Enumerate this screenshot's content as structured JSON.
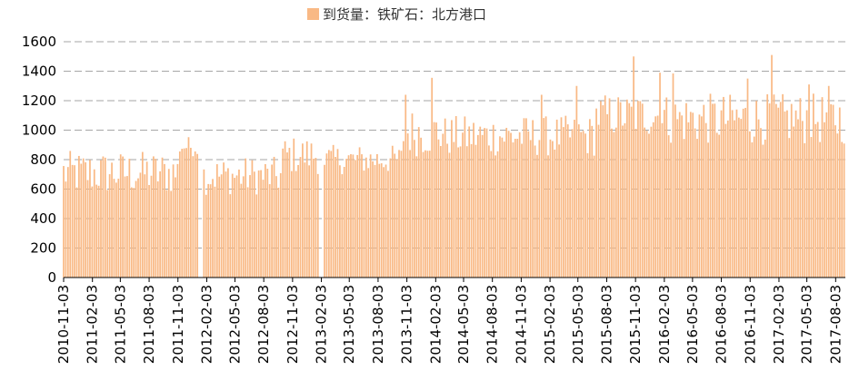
{
  "chart_data": {
    "type": "bar",
    "legend": "到货量：铁矿石：北方港口",
    "color": "#F9B985",
    "ylim": [
      0,
      1600
    ],
    "yticks": [
      0,
      200,
      400,
      600,
      800,
      1000,
      1200,
      1400,
      1600
    ],
    "grid": true,
    "legend_position": "top",
    "xtick_labels": [
      "2010-11-03",
      "2011-02-03",
      "2011-05-03",
      "2011-08-03",
      "2011-11-03",
      "2012-02-03",
      "2012-05-03",
      "2012-08-03",
      "2012-11-03",
      "2013-02-03",
      "2013-05-03",
      "2013-08-03",
      "2013-11-03",
      "2014-02-03",
      "2014-05-03",
      "2014-08-03",
      "2014-11-03",
      "2015-02-03",
      "2015-05-03",
      "2015-08-03",
      "2015-11-03",
      "2016-02-03",
      "2016-05-03",
      "2016-08-03",
      "2016-11-03",
      "2017-02-03",
      "2017-05-03",
      "2017-08-03"
    ],
    "x_start": "2010-11-03",
    "x_end": "2017-09-03",
    "gaps": [
      [
        "2012-01-10",
        "2012-01-24"
      ],
      [
        "2013-01-28",
        "2013-02-12"
      ]
    ],
    "segments": [
      {
        "from": "2010-11-03",
        "to": "2011-11-03",
        "low": 560,
        "high": 860
      },
      {
        "from": "2011-11-03",
        "to": "2012-01-10",
        "low": 820,
        "high": 960
      },
      {
        "from": "2012-01-24",
        "to": "2012-10-01",
        "low": 560,
        "high": 820
      },
      {
        "from": "2012-10-01",
        "to": "2013-01-28",
        "low": 700,
        "high": 960
      },
      {
        "from": "2013-02-12",
        "to": "2013-10-20",
        "low": 700,
        "high": 900
      },
      {
        "from": "2013-10-20",
        "to": "2014-03-01",
        "low": 820,
        "high": 1150
      },
      {
        "from": "2014-03-01",
        "to": "2015-07-01",
        "low": 820,
        "high": 1100
      },
      {
        "from": "2015-07-01",
        "to": "2016-02-15",
        "low": 950,
        "high": 1250
      },
      {
        "from": "2016-02-15",
        "to": "2017-09-03",
        "low": 900,
        "high": 1250
      }
    ],
    "peaks": [
      {
        "date": "2013-10-28",
        "value": 1240
      },
      {
        "date": "2014-01-20",
        "value": 1355
      },
      {
        "date": "2015-01-06",
        "value": 1240
      },
      {
        "date": "2015-04-28",
        "value": 1300
      },
      {
        "date": "2015-10-27",
        "value": 1500
      },
      {
        "date": "2016-01-19",
        "value": 1390
      },
      {
        "date": "2016-03-01",
        "value": 1385
      },
      {
        "date": "2016-10-25",
        "value": 1350
      },
      {
        "date": "2017-01-10",
        "value": 1510
      },
      {
        "date": "2017-05-09",
        "value": 1310
      },
      {
        "date": "2017-07-11",
        "value": 1300
      }
    ]
  }
}
